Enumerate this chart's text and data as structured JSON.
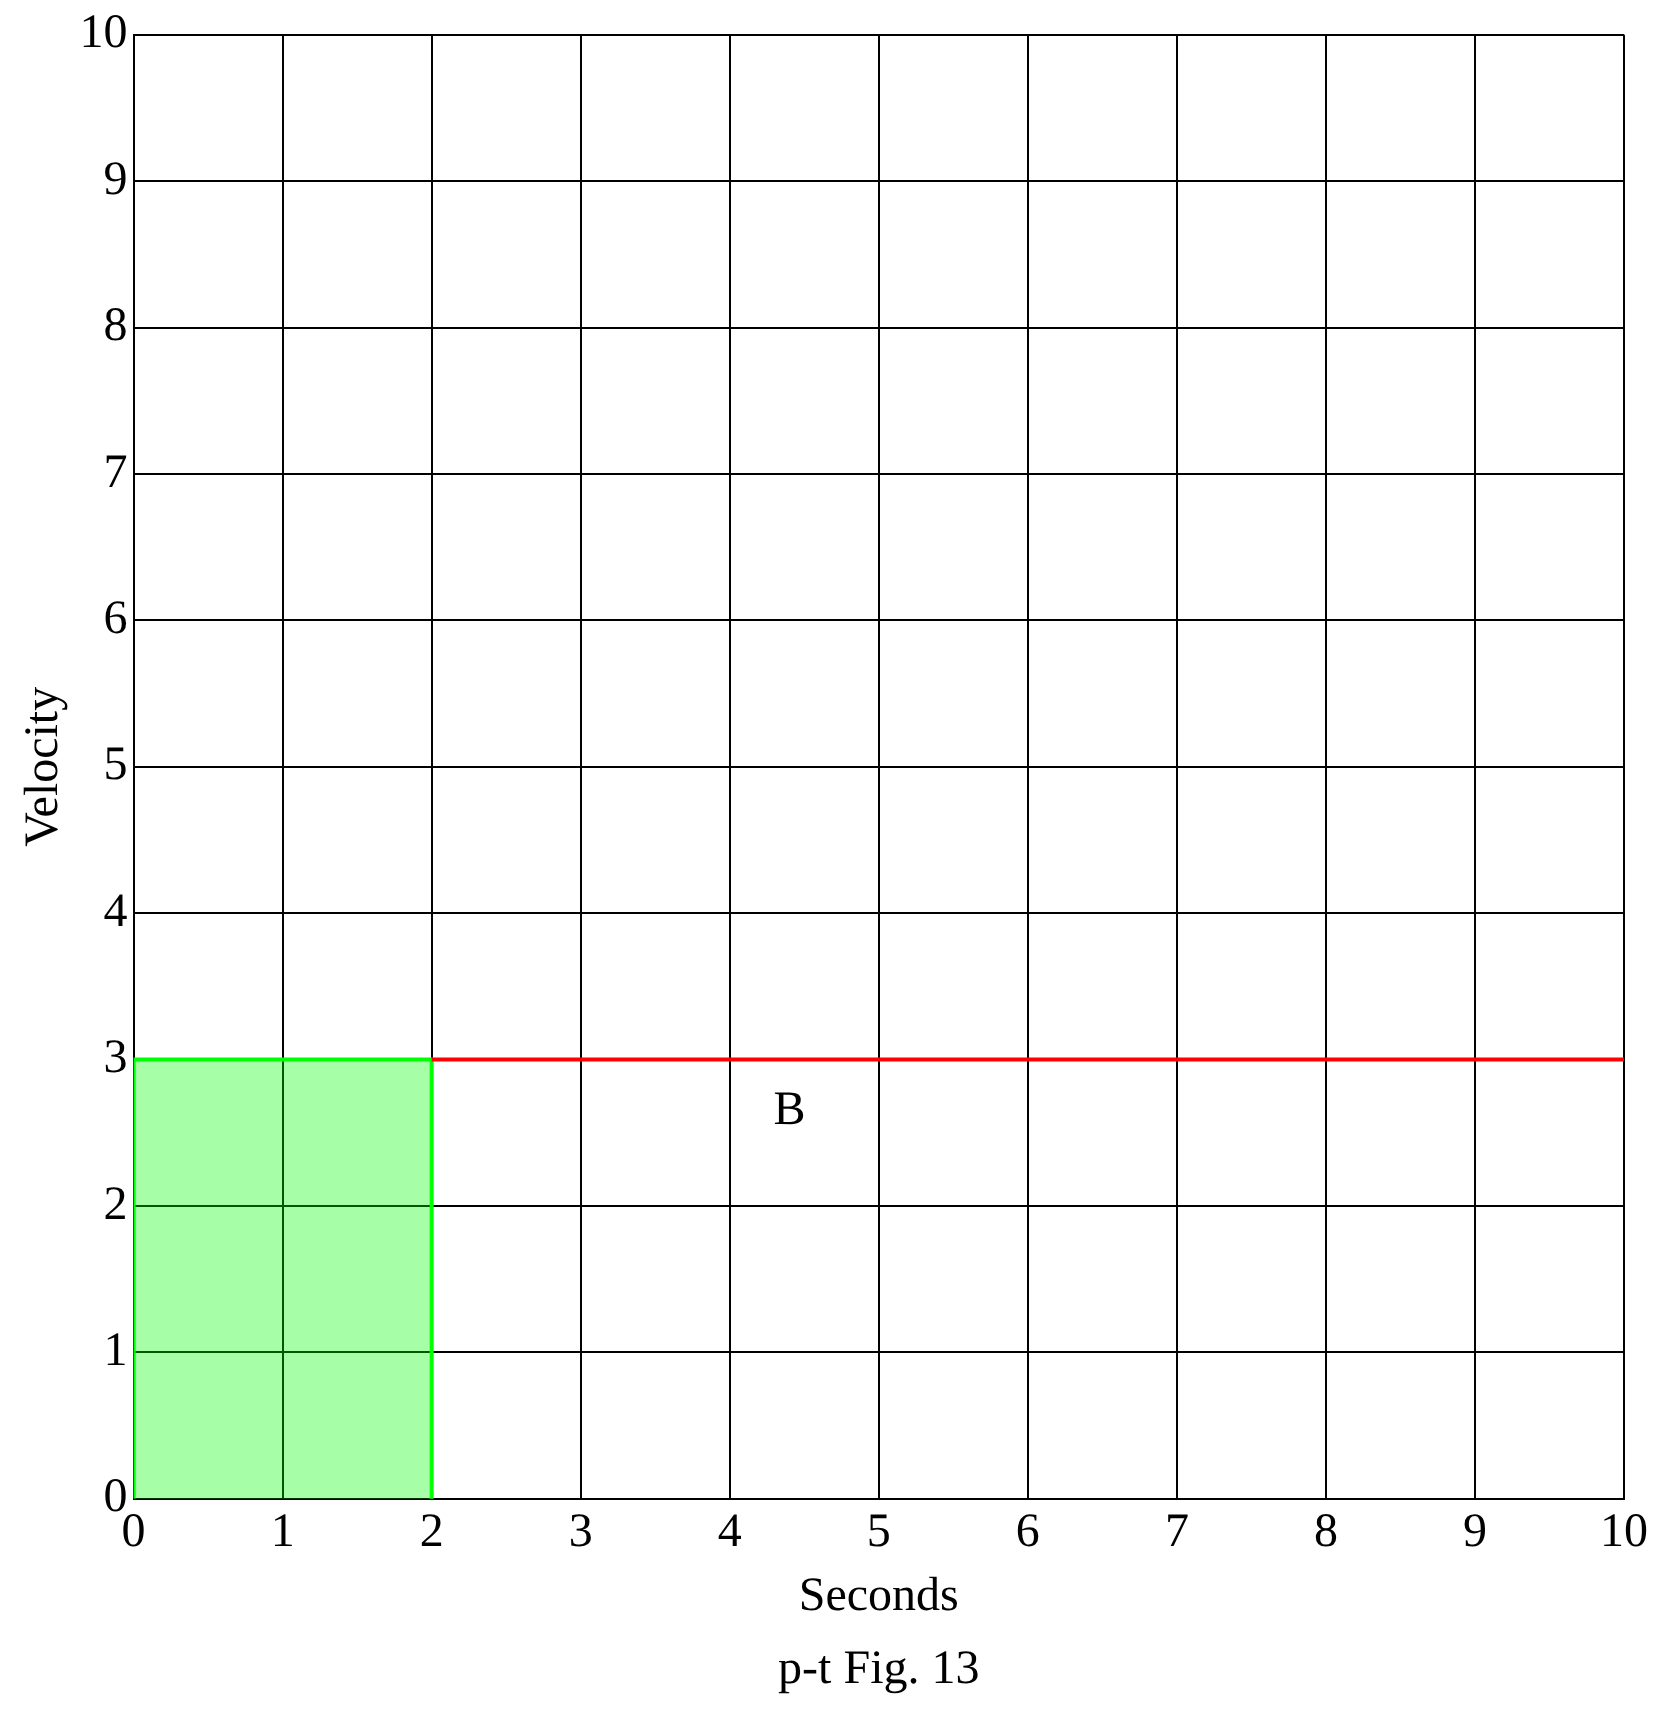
{
  "chart_data": {
    "type": "line",
    "xlabel": "Seconds",
    "ylabel": "Velocity",
    "xlim": [
      0,
      10
    ],
    "ylim": [
      0,
      10
    ],
    "xticks": [
      0,
      1,
      2,
      3,
      4,
      5,
      6,
      7,
      8,
      9,
      10
    ],
    "yticks": [
      0,
      1,
      2,
      3,
      4,
      5,
      6,
      7,
      8,
      9,
      10
    ],
    "grid": true,
    "series": [
      {
        "type": "line",
        "name": "B",
        "color": "#ff0000",
        "x": [
          2,
          10
        ],
        "values": [
          3,
          3
        ]
      },
      {
        "type": "area",
        "color": "#00ff00",
        "x": [
          0,
          0,
          2,
          2
        ],
        "values": [
          0,
          3,
          3,
          0
        ]
      }
    ],
    "annotations": [
      "p-t Fig. 13"
    ]
  }
}
